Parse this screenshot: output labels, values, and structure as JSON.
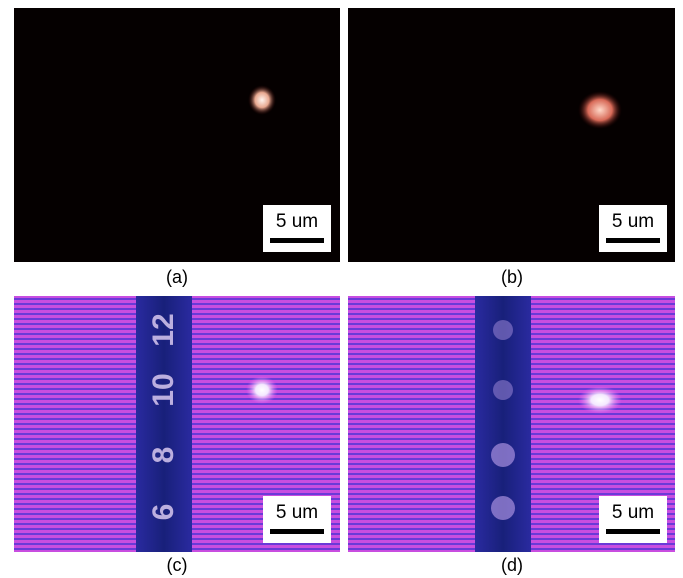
{
  "panels": [
    {
      "label": "(a)",
      "scale_bar": "5 um"
    },
    {
      "label": "(b)",
      "scale_bar": "5 um"
    },
    {
      "label": "(c)",
      "scale_bar": "5 um",
      "markings": [
        "6",
        "8",
        "10",
        "12"
      ]
    },
    {
      "label": "(d)",
      "scale_bar": "5 um"
    }
  ]
}
